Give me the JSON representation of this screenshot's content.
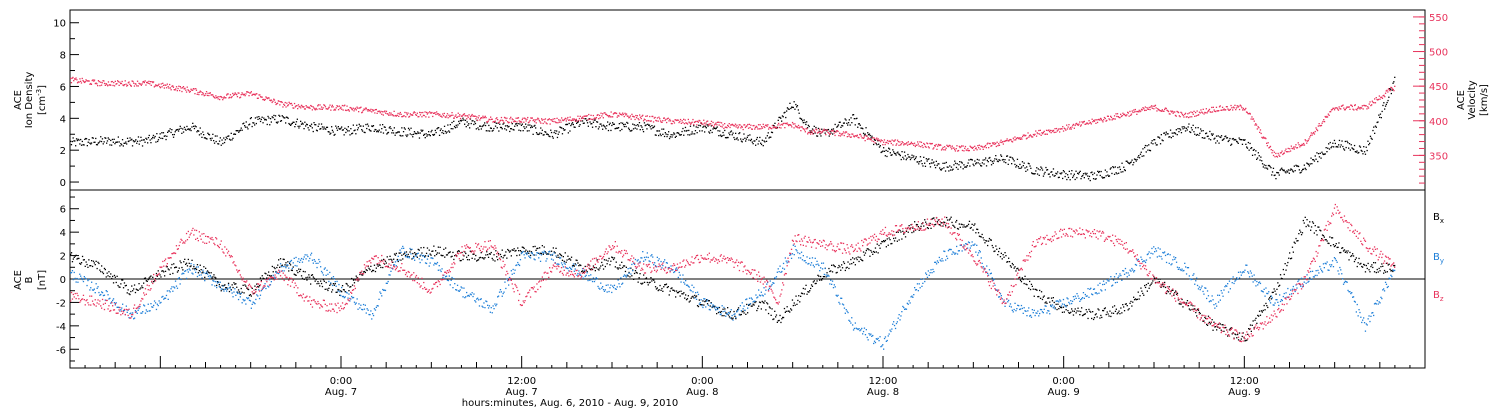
{
  "colors": {
    "black": "#000000",
    "red": "#e8335c",
    "blue": "#1e7fd8"
  },
  "chart_data": [
    {
      "type": "scatter",
      "panel": "top",
      "ylabel_left": [
        "ACE",
        "Ion Density",
        "[cm^-3]"
      ],
      "ylabel_right": [
        "ACE",
        "Velocity",
        "[km/s]"
      ],
      "left_ticks": [
        "0",
        "2",
        "4",
        "6",
        "8",
        "10"
      ],
      "right_ticks": [
        "350",
        "400",
        "450",
        "500",
        "550"
      ],
      "ylim_left": [
        -0.5,
        10.8
      ],
      "ylim_right": [
        300,
        560
      ],
      "xlim_hours": [
        -18,
        72
      ],
      "series": [
        {
          "name": "Ion Density",
          "color": "#000000",
          "axis": "left",
          "x": [
            -18,
            -16,
            -13,
            -10,
            -8,
            -6,
            -4,
            -2,
            0,
            2,
            4,
            6,
            8,
            10,
            12,
            14,
            16,
            18,
            20,
            22,
            24,
            26,
            28,
            30,
            31,
            32,
            34,
            36,
            38,
            40,
            42,
            44,
            46,
            48,
            50,
            52,
            54,
            56,
            58,
            60,
            62,
            64,
            66,
            68,
            70
          ],
          "y": [
            2.5,
            2.6,
            2.6,
            3.5,
            2.5,
            3.8,
            4.0,
            3.5,
            3.2,
            3.5,
            3.2,
            3.0,
            3.8,
            3.5,
            3.5,
            3.0,
            3.8,
            3.5,
            3.5,
            3.0,
            3.5,
            3.0,
            2.5,
            5.0,
            3.5,
            3.0,
            4.0,
            2.0,
            1.5,
            1.0,
            1.2,
            1.5,
            0.8,
            0.5,
            0.4,
            1.0,
            2.5,
            3.5,
            2.8,
            2.5,
            0.5,
            1.0,
            2.5,
            2.0,
            6.5
          ]
        },
        {
          "name": "Velocity",
          "color": "#e8335c",
          "axis": "right",
          "x": [
            -18,
            -16,
            -13,
            -10,
            -8,
            -6,
            -4,
            -2,
            0,
            2,
            4,
            6,
            8,
            10,
            12,
            14,
            16,
            18,
            20,
            22,
            24,
            26,
            28,
            30,
            31,
            32,
            34,
            36,
            38,
            40,
            42,
            44,
            46,
            48,
            50,
            52,
            54,
            56,
            58,
            60,
            62,
            64,
            66,
            68,
            70
          ],
          "y": [
            460,
            455,
            455,
            445,
            435,
            440,
            425,
            420,
            420,
            415,
            410,
            410,
            408,
            402,
            402,
            400,
            405,
            410,
            405,
            400,
            398,
            392,
            392,
            395,
            385,
            385,
            380,
            370,
            368,
            362,
            360,
            370,
            382,
            390,
            400,
            410,
            420,
            408,
            418,
            420,
            350,
            370,
            420,
            420,
            450
          ]
        }
      ]
    },
    {
      "type": "scatter",
      "panel": "bottom",
      "ylabel_left": [
        "ACE",
        "B",
        "[nT]"
      ],
      "left_ticks": [
        "-6",
        "-4",
        "-2",
        "0",
        "2",
        "4",
        "6"
      ],
      "ylim": [
        -7.6,
        7.6
      ],
      "xlim_hours": [
        -18,
        72
      ],
      "series": [
        {
          "name": "Bx",
          "color": "#000000",
          "x": [
            -18,
            -16,
            -14,
            -12,
            -10,
            -8,
            -6,
            -4,
            -2,
            0,
            2,
            4,
            6,
            8,
            10,
            12,
            14,
            16,
            18,
            20,
            22,
            24,
            26,
            28,
            29,
            30,
            32,
            34,
            36,
            38,
            40,
            42,
            44,
            46,
            48,
            50,
            52,
            54,
            56,
            58,
            60,
            62,
            64,
            66,
            68,
            70
          ],
          "y": [
            2.0,
            1.0,
            -1.0,
            0.5,
            1.5,
            -0.5,
            -1.0,
            1.5,
            0.0,
            -1.0,
            1.0,
            2.0,
            2.5,
            2.0,
            2.0,
            2.5,
            2.5,
            1.0,
            1.5,
            0.0,
            -1.0,
            -2.0,
            -3.0,
            -2.0,
            -3.5,
            -2.0,
            0.5,
            1.5,
            3.0,
            4.5,
            5.0,
            4.5,
            2.0,
            -1.0,
            -2.5,
            -3.0,
            -2.5,
            0.0,
            -2.0,
            -4.0,
            -5.0,
            -1.0,
            5.0,
            3.0,
            1.0,
            1.0
          ]
        },
        {
          "name": "By",
          "color": "#1e7fd8",
          "x": [
            -18,
            -16,
            -14,
            -12,
            -10,
            -8,
            -6,
            -4,
            -2,
            0,
            2,
            4,
            6,
            8,
            10,
            12,
            14,
            16,
            18,
            20,
            22,
            24,
            26,
            28,
            29,
            30,
            32,
            34,
            36,
            38,
            40,
            42,
            44,
            46,
            48,
            50,
            52,
            54,
            56,
            58,
            60,
            62,
            64,
            66,
            68,
            70
          ],
          "y": [
            0.5,
            -1.0,
            -3.0,
            -2.0,
            1.0,
            -0.5,
            -2.0,
            1.0,
            2.0,
            -1.0,
            -3.0,
            2.5,
            1.5,
            -1.0,
            -2.5,
            2.0,
            2.0,
            0.5,
            -1.0,
            2.0,
            1.0,
            -2.0,
            -3.0,
            -1.0,
            0.5,
            2.5,
            1.0,
            -4.0,
            -5.5,
            -1.0,
            2.0,
            3.0,
            -2.0,
            -3.0,
            -2.0,
            -1.0,
            0.5,
            2.5,
            1.0,
            -2.0,
            1.0,
            -2.0,
            0.0,
            1.5,
            -4.0,
            1.0
          ]
        },
        {
          "name": "Bz",
          "color": "#e8335c",
          "x": [
            -18,
            -16,
            -14,
            -12,
            -10,
            -8,
            -6,
            -4,
            -2,
            0,
            2,
            4,
            6,
            8,
            10,
            12,
            14,
            16,
            18,
            20,
            22,
            24,
            26,
            28,
            29,
            30,
            32,
            34,
            36,
            38,
            40,
            42,
            44,
            46,
            48,
            50,
            52,
            54,
            56,
            58,
            60,
            62,
            64,
            66,
            68,
            70
          ],
          "y": [
            -1.5,
            -2.0,
            -3.0,
            1.0,
            4.0,
            3.0,
            -1.0,
            0.5,
            -2.0,
            -2.5,
            2.0,
            1.0,
            -1.0,
            2.5,
            3.0,
            -2.0,
            1.0,
            0.5,
            3.0,
            1.0,
            1.0,
            2.0,
            1.5,
            0.0,
            -2.0,
            3.5,
            3.0,
            2.5,
            4.0,
            4.5,
            5.0,
            2.0,
            -2.0,
            3.0,
            4.0,
            4.0,
            3.0,
            0.0,
            -2.0,
            -4.0,
            -5.0,
            -3.0,
            0.0,
            6.0,
            3.0,
            1.0
          ]
        }
      ],
      "legend": [
        "B",
        "B",
        "B"
      ],
      "legend_subscripts": [
        "x",
        "y",
        "z"
      ]
    }
  ],
  "x_axis": {
    "ticks": [
      {
        "hour": 0,
        "time": "0:00",
        "date": "Aug. 7"
      },
      {
        "hour": 12,
        "time": "12:00",
        "date": "Aug. 7"
      },
      {
        "hour": 24,
        "time": "0:00",
        "date": "Aug. 8"
      },
      {
        "hour": 36,
        "time": "12:00",
        "date": "Aug. 8"
      },
      {
        "hour": 48,
        "time": "0:00",
        "date": "Aug. 9"
      },
      {
        "hour": 60,
        "time": "12:00",
        "date": "Aug. 9"
      }
    ],
    "title": "hours:minutes, Aug.  6, 2010 - Aug.  9, 2010"
  },
  "top_left_label": {
    "l1": "ACE",
    "l2": "Ion Density",
    "l3": "[cm",
    "sup": "-3",
    "l3end": "]"
  },
  "top_right_label": {
    "l1": "ACE",
    "l2": "Velocity",
    "l3": "[km/s]"
  },
  "bottom_left_label": {
    "l1": "ACE",
    "l2": "B",
    "l3": "[nT]"
  }
}
